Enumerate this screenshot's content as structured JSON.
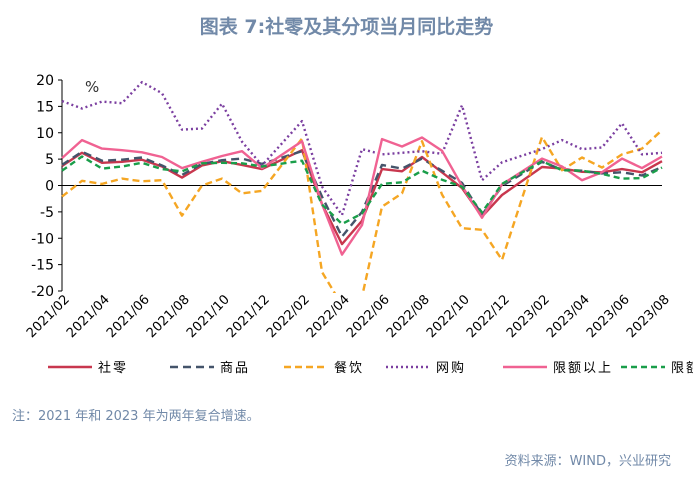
{
  "title": "图表 7:社零及其分项当月同比走势",
  "note": "注：2021 年和 2023 年为两年复合增速。",
  "source": "资料来源：WIND，兴业研究",
  "chart_data": {
    "type": "line",
    "unit_label": "%",
    "ylim": [
      -20,
      20
    ],
    "yticks": [
      -20,
      -15,
      -10,
      -5,
      0,
      5,
      10,
      15,
      20
    ],
    "grid": false,
    "legend_position": "bottom",
    "x": [
      "2021/02",
      "2021/03",
      "2021/04",
      "2021/05",
      "2021/06",
      "2021/07",
      "2021/08",
      "2021/09",
      "2021/10",
      "2021/11",
      "2021/12",
      "2022/01",
      "2022/02",
      "2022/03",
      "2022/04",
      "2022/05",
      "2022/06",
      "2022/07",
      "2022/08",
      "2022/09",
      "2022/10",
      "2022/11",
      "2022/12",
      "2023/01",
      "2023/02",
      "2023/03",
      "2023/04",
      "2023/05",
      "2023/06",
      "2023/07",
      "2023/08"
    ],
    "xtick_labels": [
      "2021/02",
      "2021/04",
      "2021/06",
      "2021/08",
      "2021/10",
      "2021/12",
      "2022/02",
      "2022/04",
      "2022/06",
      "2022/08",
      "2022/10",
      "2022/12",
      "2023/02",
      "2023/04",
      "2023/06",
      "2023/08"
    ],
    "series": [
      {
        "name": "社零",
        "color": "#c8374e",
        "dash": "solid",
        "values": [
          3.7,
          6.2,
          4.3,
          4.5,
          4.9,
          3.6,
          1.5,
          3.8,
          4.6,
          3.9,
          3.1,
          null,
          6.7,
          -3.5,
          -11.1,
          -6.7,
          3.1,
          2.7,
          5.4,
          2.5,
          -0.5,
          -5.9,
          -1.8,
          null,
          3.5,
          3.2,
          2.6,
          2.5,
          3.1,
          2.5,
          4.6
        ]
      },
      {
        "name": "商品",
        "color": "#44546a",
        "dash": "8,5",
        "values": [
          3.9,
          6.4,
          4.7,
          4.9,
          5.3,
          3.8,
          2.0,
          4.1,
          4.8,
          5.1,
          4.1,
          null,
          6.5,
          -2.1,
          -9.7,
          -5.0,
          3.9,
          3.2,
          5.1,
          2.8,
          0.5,
          -5.6,
          -0.1,
          null,
          4.5,
          3.0,
          2.8,
          2.3,
          2.5,
          1.9,
          3.5
        ]
      },
      {
        "name": "餐饮",
        "color": "#f5a623",
        "dash": "7,4",
        "values": [
          -2.1,
          0.9,
          0.3,
          1.3,
          0.8,
          1.0,
          -5.7,
          0.0,
          1.3,
          -1.5,
          -1.0,
          null,
          8.9,
          -16.4,
          -22.7,
          -21.1,
          -4.0,
          -1.5,
          8.4,
          -1.7,
          -8.1,
          -8.4,
          -14.1,
          null,
          9.2,
          2.9,
          5.3,
          3.4,
          5.9,
          7.0,
          10.5
        ]
      },
      {
        "name": "网购",
        "color": "#7b3fa0",
        "dash": "2,3",
        "values": [
          16.0,
          14.6,
          15.9,
          15.6,
          19.6,
          17.5,
          10.6,
          10.8,
          15.5,
          8.3,
          3.8,
          null,
          12.2,
          -0.2,
          -5.6,
          6.9,
          5.9,
          6.2,
          6.5,
          6.0,
          15.2,
          1.0,
          4.4,
          null,
          6.9,
          8.6,
          6.9,
          7.2,
          11.8,
          5.9,
          6.2
        ]
      },
      {
        "name": "限额以上",
        "color": "#f06292",
        "dash": "solid",
        "values": [
          5.2,
          8.6,
          7.0,
          6.7,
          6.3,
          5.4,
          3.3,
          4.5,
          5.6,
          6.5,
          3.3,
          null,
          8.4,
          -3.5,
          -13.1,
          -7.5,
          8.8,
          7.4,
          9.1,
          6.6,
          -0.1,
          -6.1,
          0.2,
          null,
          5.1,
          3.6,
          1.0,
          2.5,
          5.1,
          3.3,
          5.5
        ]
      },
      {
        "name": "限额以下",
        "color": "#1a9e4a",
        "dash": "6,4",
        "values": [
          2.8,
          5.5,
          3.2,
          3.6,
          4.3,
          3.1,
          2.7,
          4.2,
          4.3,
          4.2,
          3.6,
          null,
          4.7,
          -3.6,
          -7.3,
          -5.3,
          0.3,
          0.6,
          2.8,
          1.1,
          -0.2,
          -5.1,
          0.3,
          null,
          4.6,
          2.9,
          2.8,
          2.2,
          1.3,
          1.4,
          3.4
        ]
      }
    ]
  }
}
